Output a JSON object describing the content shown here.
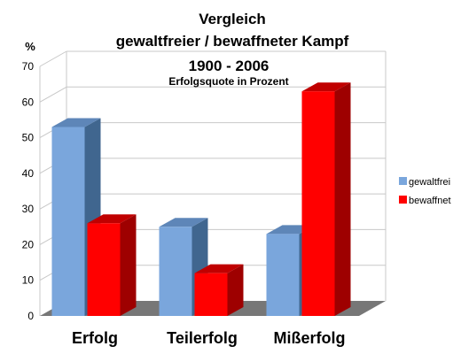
{
  "chart_data": {
    "type": "bar",
    "title": "Vergleich",
    "title_line2": "gewaltfreier / bewaffneter Kampf",
    "subtitle": "1900 - 2006",
    "subtitle2": "Erfolgsquote in Prozent",
    "ylabel": "%",
    "xlabel": "",
    "ylim": [
      0,
      70
    ],
    "yticks": [
      "0",
      "10",
      "20",
      "30",
      "40",
      "50",
      "60",
      "70"
    ],
    "grid": true,
    "legend_position": "right",
    "categories": [
      "Erfolg",
      "Teilerfolg",
      "Mißerfolg"
    ],
    "series": [
      {
        "name": "gewaltfrei",
        "values": [
          53,
          25,
          23
        ],
        "color": "#7aa6dc",
        "side_color": "#40668f",
        "top_color": "#5e86b8"
      },
      {
        "name": "bewaffnet",
        "values": [
          26,
          12,
          63
        ],
        "color": "#ff0000",
        "side_color": "#9e0000",
        "top_color": "#c00000"
      }
    ],
    "colors": {
      "grid": "#c8c8c8",
      "floor": "#777777",
      "wall_edge": "#cccccc"
    }
  }
}
